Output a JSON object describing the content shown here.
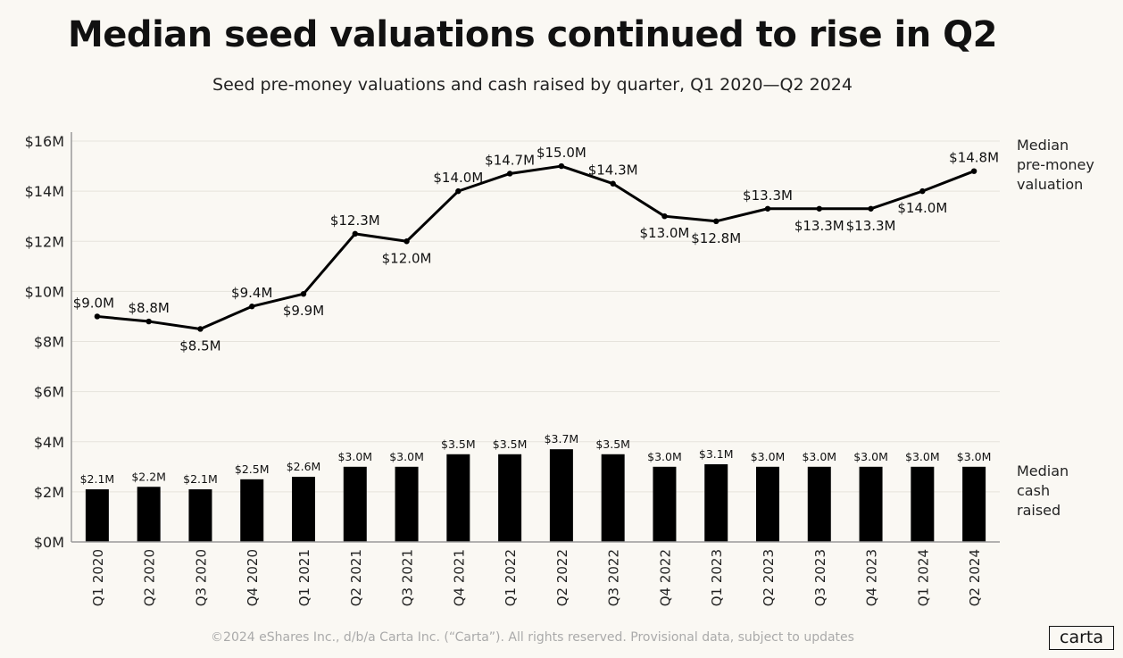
{
  "chart_data": {
    "type": "bar+line",
    "title": "Median seed valuations continued to rise in Q2",
    "subtitle": "Seed pre-money valuations and cash raised by quarter, Q1 2020—Q2 2024",
    "categories": [
      "Q1 2020",
      "Q2 2020",
      "Q3 2020",
      "Q4 2020",
      "Q1 2021",
      "Q2 2021",
      "Q3 2021",
      "Q4 2021",
      "Q1 2022",
      "Q2 2022",
      "Q3 2022",
      "Q4 2022",
      "Q1 2023",
      "Q2 2023",
      "Q3 2023",
      "Q4 2023",
      "Q1 2024",
      "Q2 2024"
    ],
    "series": [
      {
        "name": "Median pre-money valuation",
        "legend_lines": [
          "Median",
          "pre-money",
          "valuation"
        ],
        "type": "line",
        "values": [
          9.0,
          8.8,
          8.5,
          9.4,
          9.9,
          12.3,
          12.0,
          14.0,
          14.7,
          15.0,
          14.3,
          13.0,
          12.8,
          13.3,
          13.3,
          13.3,
          14.0,
          14.8
        ],
        "labels": [
          "$9.0M",
          "$8.8M",
          "$8.5M",
          "$9.4M",
          "$9.9M",
          "$12.3M",
          "$12.0M",
          "$14.0M",
          "$14.7M",
          "$15.0M",
          "$14.3M",
          "$13.0M",
          "$12.8M",
          "$13.3M",
          "$13.3M",
          "$13.3M",
          "$14.0M",
          "$14.8M"
        ]
      },
      {
        "name": "Median cash raised",
        "legend_lines": [
          "Median",
          "cash",
          "raised"
        ],
        "type": "bar",
        "values": [
          2.1,
          2.2,
          2.1,
          2.5,
          2.6,
          3.0,
          3.0,
          3.5,
          3.5,
          3.7,
          3.5,
          3.0,
          3.1,
          3.0,
          3.0,
          3.0,
          3.0,
          3.0
        ],
        "labels": [
          "$2.1M",
          "$2.2M",
          "$2.1M",
          "$2.5M",
          "$2.6M",
          "$3.0M",
          "$3.0M",
          "$3.5M",
          "$3.5M",
          "$3.7M",
          "$3.5M",
          "$3.0M",
          "$3.1M",
          "$3.0M",
          "$3.0M",
          "$3.0M",
          "$3.0M",
          "$3.0M"
        ]
      }
    ],
    "ylim": [
      0,
      16
    ],
    "yticks": [
      "$0M",
      "$2M",
      "$4M",
      "$6M",
      "$8M",
      "$10M",
      "$12M",
      "$14M",
      "$16M"
    ],
    "grid": true,
    "legend": "right",
    "colors": {
      "bars": "#000000",
      "line": "#000000",
      "background": "#faf8f3",
      "grid": "#e6e3dc"
    }
  },
  "footer": "©2024 eShares Inc., d/b/a Carta Inc. (“Carta”). All rights reserved. Provisional data, subject to updates",
  "logo": "carta"
}
